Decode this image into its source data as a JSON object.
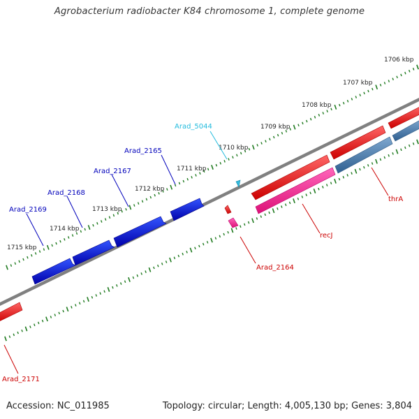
{
  "title": "Agrobacterium radiobacter K84 chromosome 1, complete genome",
  "footer": {
    "accession": "Accession: NC_011985",
    "summary": "Topology: circular; Length: 4,005,130 bp; Genes: 3,804"
  },
  "colors": {
    "backbone": "#808080",
    "tick": "#1f7a1f",
    "forward_gene": "#ff0000",
    "forward_pink": "#ff3399",
    "forward_steel": "#4a7fb0",
    "reverse_gene": "#0000ee",
    "cyan_gene": "#33bbdd",
    "label_blue": "#0000bb",
    "label_red": "#cc0000",
    "label_cyan": "#22bbdd"
  },
  "kbp_labels": [
    {
      "text": "1706 kbp"
    },
    {
      "text": "1707 kbp"
    },
    {
      "text": "1708 kbp"
    },
    {
      "text": "1709 kbp"
    },
    {
      "text": "1710 kbp"
    },
    {
      "text": "1711 kbp"
    },
    {
      "text": "1712 kbp"
    },
    {
      "text": "1713 kbp"
    },
    {
      "text": "1714 kbp"
    },
    {
      "text": "1715 kbp"
    }
  ],
  "genes": [
    {
      "name": "Arad_2169",
      "strand": "reverse",
      "color": "#0000bb"
    },
    {
      "name": "Arad_2168",
      "strand": "reverse",
      "color": "#0000bb"
    },
    {
      "name": "Arad_2167",
      "strand": "reverse",
      "color": "#0000bb"
    },
    {
      "name": "Arad_2165",
      "strand": "reverse",
      "color": "#0000bb"
    },
    {
      "name": "Arad_5044",
      "strand": "reverse",
      "color": "#22bbdd"
    },
    {
      "name": "Arad_2164",
      "strand": "forward",
      "color": "#cc0000"
    },
    {
      "name": "recJ",
      "strand": "forward",
      "color": "#cc0000"
    },
    {
      "name": "thrA",
      "strand": "forward",
      "color": "#cc0000"
    },
    {
      "name": "Arad_2171",
      "strand": "forward",
      "color": "#cc0000"
    }
  ]
}
